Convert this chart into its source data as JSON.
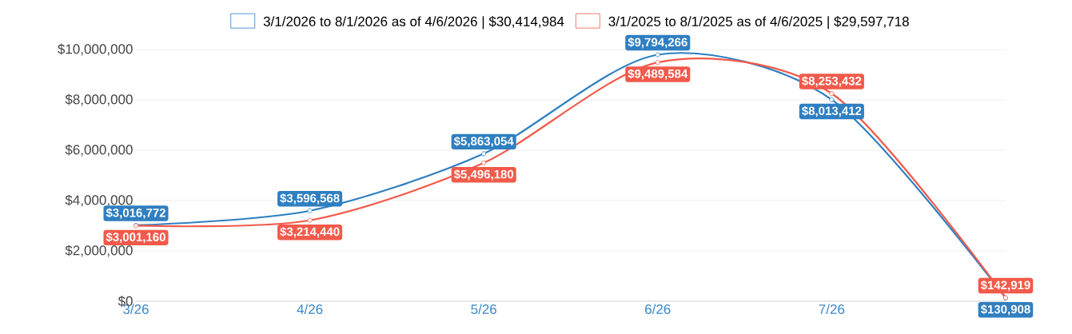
{
  "chart_data": {
    "type": "line",
    "categories": [
      "3/26",
      "4/26",
      "5/26",
      "6/26",
      "7/26",
      null
    ],
    "series": [
      {
        "name": "3/1/2026 to 8/1/2026 as of 4/6/2026 | $30,414,984",
        "color": "#2f7fc1",
        "values": [
          3016772,
          3596568,
          5863054,
          9794266,
          8013412,
          130908
        ],
        "value_labels": [
          "$3,016,772",
          "$3,596,568",
          "$5,863,054",
          "$9,794,266",
          "$8,013,412",
          "$130,908"
        ]
      },
      {
        "name": "3/1/2025 to 8/1/2025 as of 4/6/2025 | $29,597,718",
        "color": "#f25a4a",
        "values": [
          3001160,
          3214440,
          5496180,
          9489584,
          8253432,
          142919
        ],
        "value_labels": [
          "$3,001,160",
          "$3,214,440",
          "$5,496,180",
          "$9,489,584",
          "$8,253,432",
          "$142,919"
        ]
      }
    ],
    "ylim": [
      0,
      10000000
    ],
    "yticks": [
      {
        "value": 0,
        "label": "$0"
      },
      {
        "value": 2000000,
        "label": "$2,000,000"
      },
      {
        "value": 4000000,
        "label": "$4,000,000"
      },
      {
        "value": 6000000,
        "label": "$6,000,000"
      },
      {
        "value": 8000000,
        "label": "$8,000,000"
      },
      {
        "value": 10000000,
        "label": "$10,000,000"
      }
    ],
    "grid": "y",
    "legend": "top",
    "marker": "circle",
    "line_style": "solid"
  }
}
